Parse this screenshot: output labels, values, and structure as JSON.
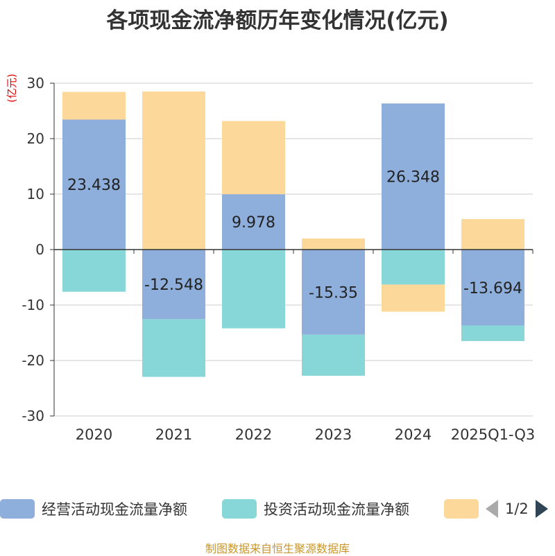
{
  "title": "各项现金流净额历年变化情况(亿元)",
  "unit_label": "(亿元)",
  "source": "制图数据来自恒生聚源数据库",
  "legend": {
    "items": [
      {
        "label": "经营活动现金流量净额",
        "color": "#8eaedb"
      },
      {
        "label": "投资活动现金流量净额",
        "color": "#88d7d8"
      },
      {
        "label": "",
        "color": "#fdd89b"
      }
    ],
    "page": "1/2"
  },
  "chart_data": {
    "type": "bar",
    "stacked": true,
    "categories": [
      "2020",
      "2021",
      "2022",
      "2023",
      "2024",
      "2025Q1-Q3"
    ],
    "ylim": [
      -30,
      30
    ],
    "yticks": [
      30,
      20,
      10,
      0,
      -10,
      -20,
      -30
    ],
    "series": [
      {
        "name": "经营活动现金流量净额",
        "color": "#8eaedb",
        "values": [
          23.438,
          -12.548,
          9.978,
          -15.35,
          26.348,
          -13.694
        ],
        "labels": [
          "23.438",
          "-12.548",
          "9.978",
          "-15.35",
          "26.348",
          "-13.694"
        ]
      },
      {
        "name": "投资活动现金流量净额",
        "color": "#88d7d8",
        "values": [
          -7.6,
          -10.4,
          -14.2,
          -7.4,
          -6.3,
          -2.8
        ]
      },
      {
        "name": "",
        "color": "#fdd89b",
        "values": [
          5.0,
          28.5,
          13.2,
          2.0,
          -4.9,
          5.5
        ]
      }
    ]
  }
}
